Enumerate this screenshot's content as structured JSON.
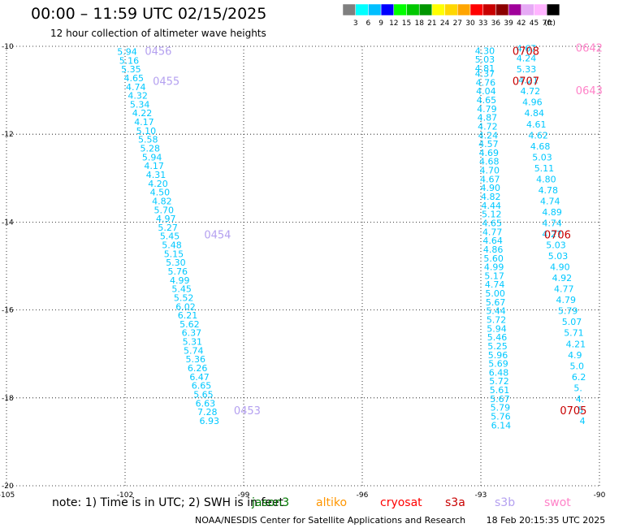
{
  "header": {
    "title": "00:00 – 11:59 UTC 02/15/2025",
    "subtitle": "12 hour collection of altimeter wave heights"
  },
  "colorbar": {
    "unit": "(ft)",
    "levels": [
      {
        "label": "",
        "color": "#7f7f7f"
      },
      {
        "label": "3",
        "color": "#00ffff"
      },
      {
        "label": "6",
        "color": "#00bfff"
      },
      {
        "label": "9",
        "color": "#0000ff"
      },
      {
        "label": "12",
        "color": "#00ff00"
      },
      {
        "label": "15",
        "color": "#00c800"
      },
      {
        "label": "18",
        "color": "#009600"
      },
      {
        "label": "21",
        "color": "#ffff00"
      },
      {
        "label": "24",
        "color": "#ffd700"
      },
      {
        "label": "27",
        "color": "#ffa500"
      },
      {
        "label": "30",
        "color": "#ff0000"
      },
      {
        "label": "33",
        "color": "#c80000"
      },
      {
        "label": "36",
        "color": "#8b0000"
      },
      {
        "label": "39",
        "color": "#a0009a"
      },
      {
        "label": "42",
        "color": "#e6aaf5"
      },
      {
        "label": "45",
        "color": "#ffb4ff"
      },
      {
        "label": "70",
        "color": "#000000"
      }
    ]
  },
  "map": {
    "lon_range": [
      -105,
      -90
    ],
    "lat_range": [
      -20,
      -10
    ],
    "x_ticks": [
      {
        "value": -105,
        "label": "-105"
      },
      {
        "value": -102,
        "label": "-102"
      },
      {
        "value": -99,
        "label": "-99"
      },
      {
        "value": -96,
        "label": "-96"
      },
      {
        "value": -93,
        "label": "-93"
      },
      {
        "value": -90,
        "label": "-90"
      }
    ],
    "y_ticks": [
      {
        "value": -10,
        "label": "-10"
      },
      {
        "value": -12,
        "label": "-12"
      },
      {
        "value": -14,
        "label": "-14"
      },
      {
        "value": -16,
        "label": "-16"
      },
      {
        "value": -18,
        "label": "-18"
      },
      {
        "value": -20,
        "label": "-20"
      }
    ],
    "label_color": "#00c8ff",
    "tracks": [
      {
        "satellite": "s3b",
        "color": "#b4a0f0",
        "points": [
          {
            "lon": -102.2,
            "lat": -10.12,
            "swh": "5.94"
          },
          {
            "lon": -102.15,
            "lat": -10.32,
            "swh": "5.16"
          },
          {
            "lon": -102.1,
            "lat": -10.52,
            "swh": "5.35"
          },
          {
            "lon": -102.03,
            "lat": -10.72,
            "swh": "4.65"
          },
          {
            "lon": -101.98,
            "lat": -10.92,
            "swh": "4.74"
          },
          {
            "lon": -101.93,
            "lat": -11.12,
            "swh": "4.32"
          },
          {
            "lon": -101.88,
            "lat": -11.32,
            "swh": "5.34"
          },
          {
            "lon": -101.82,
            "lat": -11.52,
            "swh": "4.22"
          },
          {
            "lon": -101.77,
            "lat": -11.72,
            "swh": "4.17"
          },
          {
            "lon": -101.72,
            "lat": -11.92,
            "swh": "5.10"
          },
          {
            "lon": -101.67,
            "lat": -12.12,
            "swh": "5.58"
          },
          {
            "lon": -101.62,
            "lat": -12.32,
            "swh": "5.28"
          },
          {
            "lon": -101.57,
            "lat": -12.52,
            "swh": "5.94"
          },
          {
            "lon": -101.52,
            "lat": -12.72,
            "swh": "4.17"
          },
          {
            "lon": -101.47,
            "lat": -12.92,
            "swh": "4.31"
          },
          {
            "lon": -101.42,
            "lat": -13.12,
            "swh": "4.20"
          },
          {
            "lon": -101.37,
            "lat": -13.32,
            "swh": "4.50"
          },
          {
            "lon": -101.32,
            "lat": -13.52,
            "swh": "4.82"
          },
          {
            "lon": -101.27,
            "lat": -13.72,
            "swh": "5.70"
          },
          {
            "lon": -101.22,
            "lat": -13.92,
            "swh": "4.97"
          },
          {
            "lon": -101.17,
            "lat": -14.12,
            "swh": "5.27"
          },
          {
            "lon": -101.12,
            "lat": -14.32,
            "swh": "5.45"
          },
          {
            "lon": -101.07,
            "lat": -14.52,
            "swh": "5.48"
          },
          {
            "lon": -101.02,
            "lat": -14.72,
            "swh": "5.15"
          },
          {
            "lon": -100.97,
            "lat": -14.92,
            "swh": "5.30"
          },
          {
            "lon": -100.92,
            "lat": -15.12,
            "swh": "5.76"
          },
          {
            "lon": -100.87,
            "lat": -15.32,
            "swh": "4.99"
          },
          {
            "lon": -100.82,
            "lat": -15.52,
            "swh": "5.45"
          },
          {
            "lon": -100.77,
            "lat": -15.72,
            "swh": "5.52"
          },
          {
            "lon": -100.72,
            "lat": -15.92,
            "swh": "6.02"
          },
          {
            "lon": -100.67,
            "lat": -16.12,
            "swh": "6.21"
          },
          {
            "lon": -100.62,
            "lat": -16.32,
            "swh": "5.62"
          },
          {
            "lon": -100.57,
            "lat": -16.52,
            "swh": "6.37"
          },
          {
            "lon": -100.55,
            "lat": -16.72,
            "swh": "5.31"
          },
          {
            "lon": -100.52,
            "lat": -16.92,
            "swh": "5.74"
          },
          {
            "lon": -100.47,
            "lat": -17.12,
            "swh": "5.36"
          },
          {
            "lon": -100.42,
            "lat": -17.32,
            "swh": "6.26"
          },
          {
            "lon": -100.37,
            "lat": -17.52,
            "swh": "6.47"
          },
          {
            "lon": -100.32,
            "lat": -17.72,
            "swh": "6.65"
          },
          {
            "lon": -100.27,
            "lat": -17.92,
            "swh": "5.65"
          },
          {
            "lon": -100.22,
            "lat": -18.12,
            "swh": "6.63"
          },
          {
            "lon": -100.17,
            "lat": -18.32,
            "swh": "7.28"
          },
          {
            "lon": -100.12,
            "lat": -18.52,
            "swh": "6.93"
          }
        ]
      },
      {
        "satellite": "s3a",
        "color": "#c80000",
        "points": [
          {
            "lon": -93.15,
            "lat": -10.1,
            "swh": "4.30"
          },
          {
            "lon": -93.15,
            "lat": -10.3,
            "swh": "5.03"
          },
          {
            "lon": -93.15,
            "lat": -10.5,
            "swh": "4.81"
          },
          {
            "lon": -93.15,
            "lat": -10.62,
            "swh": "4.37"
          },
          {
            "lon": -93.13,
            "lat": -10.82,
            "swh": "4.76"
          },
          {
            "lon": -93.12,
            "lat": -11.02,
            "swh": "4.04"
          },
          {
            "lon": -93.11,
            "lat": -11.22,
            "swh": "4.65"
          },
          {
            "lon": -93.1,
            "lat": -11.42,
            "swh": "4.79"
          },
          {
            "lon": -93.09,
            "lat": -11.62,
            "swh": "4.87"
          },
          {
            "lon": -93.08,
            "lat": -11.82,
            "swh": "4.72"
          },
          {
            "lon": -93.07,
            "lat": -12.02,
            "swh": "4.24"
          },
          {
            "lon": -93.06,
            "lat": -12.22,
            "swh": "4.57"
          },
          {
            "lon": -93.05,
            "lat": -12.42,
            "swh": "4.69"
          },
          {
            "lon": -93.04,
            "lat": -12.62,
            "swh": "4.68"
          },
          {
            "lon": -93.03,
            "lat": -12.82,
            "swh": "4.70"
          },
          {
            "lon": -93.02,
            "lat": -13.02,
            "swh": "4.67"
          },
          {
            "lon": -93.01,
            "lat": -13.22,
            "swh": "4.90"
          },
          {
            "lon": -93.0,
            "lat": -13.42,
            "swh": "4.82"
          },
          {
            "lon": -92.99,
            "lat": -13.62,
            "swh": "4.44"
          },
          {
            "lon": -92.98,
            "lat": -13.82,
            "swh": "5.12"
          },
          {
            "lon": -92.97,
            "lat": -14.02,
            "swh": "4.65"
          },
          {
            "lon": -92.96,
            "lat": -14.22,
            "swh": "4.77"
          },
          {
            "lon": -92.95,
            "lat": -14.42,
            "swh": "4.64"
          },
          {
            "lon": -92.94,
            "lat": -14.62,
            "swh": "4.86"
          },
          {
            "lon": -92.93,
            "lat": -14.82,
            "swh": "5.60"
          },
          {
            "lon": -92.92,
            "lat": -15.02,
            "swh": "4.99"
          },
          {
            "lon": -92.91,
            "lat": -15.22,
            "swh": "5.17"
          },
          {
            "lon": -92.9,
            "lat": -15.42,
            "swh": "4.74"
          },
          {
            "lon": -92.89,
            "lat": -15.62,
            "swh": "5.00"
          },
          {
            "lon": -92.88,
            "lat": -15.82,
            "swh": "5.67"
          },
          {
            "lon": -92.87,
            "lat": -16.02,
            "swh": "5.44"
          },
          {
            "lon": -92.86,
            "lat": -16.22,
            "swh": "5.72"
          },
          {
            "lon": -92.85,
            "lat": -16.42,
            "swh": "5.94"
          },
          {
            "lon": -92.84,
            "lat": -16.62,
            "swh": "5.46"
          },
          {
            "lon": -92.83,
            "lat": -16.82,
            "swh": "5.25"
          },
          {
            "lon": -92.82,
            "lat": -17.02,
            "swh": "5.96"
          },
          {
            "lon": -92.81,
            "lat": -17.22,
            "swh": "5.69"
          },
          {
            "lon": -92.8,
            "lat": -17.42,
            "swh": "6.48"
          },
          {
            "lon": -92.79,
            "lat": -17.62,
            "swh": "5.72"
          },
          {
            "lon": -92.78,
            "lat": -17.82,
            "swh": "5.61"
          },
          {
            "lon": -92.77,
            "lat": -18.02,
            "swh": "5.67"
          },
          {
            "lon": -92.76,
            "lat": -18.22,
            "swh": "5.79"
          },
          {
            "lon": -92.75,
            "lat": -18.42,
            "swh": "5.76"
          },
          {
            "lon": -92.74,
            "lat": -18.62,
            "swh": "6.14"
          }
        ]
      },
      {
        "satellite": "swot",
        "color": "#ff82c8",
        "points": [
          {
            "lon": -92.1,
            "lat": -10.05,
            "swh": "4.67"
          },
          {
            "lon": -92.1,
            "lat": -10.27,
            "swh": "4.24"
          },
          {
            "lon": -92.1,
            "lat": -10.52,
            "swh": "5.33"
          },
          {
            "lon": -92.05,
            "lat": -10.77,
            "swh": "4.21"
          },
          {
            "lon": -92.0,
            "lat": -11.02,
            "swh": "4.72"
          },
          {
            "lon": -91.95,
            "lat": -11.27,
            "swh": "4.96"
          },
          {
            "lon": -91.9,
            "lat": -11.52,
            "swh": "4.84"
          },
          {
            "lon": -91.85,
            "lat": -11.77,
            "swh": "4.61"
          },
          {
            "lon": -91.8,
            "lat": -12.02,
            "swh": "4.62"
          },
          {
            "lon": -91.75,
            "lat": -12.27,
            "swh": "4.68"
          },
          {
            "lon": -91.7,
            "lat": -12.52,
            "swh": "5.03"
          },
          {
            "lon": -91.65,
            "lat": -12.77,
            "swh": "5.11"
          },
          {
            "lon": -91.6,
            "lat": -13.02,
            "swh": "4.80"
          },
          {
            "lon": -91.55,
            "lat": -13.27,
            "swh": "4.78"
          },
          {
            "lon": -91.5,
            "lat": -13.52,
            "swh": "4.74"
          },
          {
            "lon": -91.45,
            "lat": -13.77,
            "swh": "4.89"
          },
          {
            "lon": -91.45,
            "lat": -14.02,
            "swh": "4.74"
          },
          {
            "lon": -91.45,
            "lat": -14.27,
            "swh": "4.27"
          },
          {
            "lon": -91.35,
            "lat": -14.52,
            "swh": "5.03"
          },
          {
            "lon": -91.3,
            "lat": -14.77,
            "swh": "5.03"
          },
          {
            "lon": -91.25,
            "lat": -15.02,
            "swh": "4.90"
          },
          {
            "lon": -91.2,
            "lat": -15.27,
            "swh": "4.92"
          },
          {
            "lon": -91.15,
            "lat": -15.52,
            "swh": "4.77"
          },
          {
            "lon": -91.1,
            "lat": -15.77,
            "swh": "4.79"
          },
          {
            "lon": -91.05,
            "lat": -16.02,
            "swh": "5.79"
          },
          {
            "lon": -90.95,
            "lat": -16.27,
            "swh": "5.07"
          },
          {
            "lon": -90.9,
            "lat": -16.52,
            "swh": "5.71"
          },
          {
            "lon": -90.85,
            "lat": -16.77,
            "swh": "4.21"
          },
          {
            "lon": -90.8,
            "lat": -17.02,
            "swh": "4.9"
          },
          {
            "lon": -90.75,
            "lat": -17.27,
            "swh": "5.0"
          },
          {
            "lon": -90.7,
            "lat": -17.52,
            "swh": "6.2"
          },
          {
            "lon": -90.65,
            "lat": -17.77,
            "swh": "5."
          },
          {
            "lon": -90.6,
            "lat": -18.02,
            "swh": "4."
          },
          {
            "lon": -90.55,
            "lat": -18.27,
            "swh": "5"
          },
          {
            "lon": -90.5,
            "lat": -18.52,
            "swh": "4"
          }
        ]
      }
    ],
    "time_labels": [
      {
        "text": "0456",
        "lon": -101.5,
        "lat": -10.12,
        "color": "#b4a0f0"
      },
      {
        "text": "0455",
        "lon": -101.3,
        "lat": -10.8,
        "color": "#b4a0f0"
      },
      {
        "text": "0454",
        "lon": -100.0,
        "lat": -14.3,
        "color": "#b4a0f0"
      },
      {
        "text": "0453",
        "lon": -99.25,
        "lat": -18.3,
        "color": "#b4a0f0"
      },
      {
        "text": "0708",
        "lon": -92.2,
        "lat": -10.12,
        "color": "#c80000"
      },
      {
        "text": "0707",
        "lon": -92.2,
        "lat": -10.8,
        "color": "#c80000"
      },
      {
        "text": "0706",
        "lon": -91.4,
        "lat": -14.3,
        "color": "#c80000"
      },
      {
        "text": "0705",
        "lon": -91.0,
        "lat": -18.3,
        "color": "#c80000"
      },
      {
        "text": "0642",
        "lon": -90.6,
        "lat": -10.05,
        "color": "#ff82c8"
      },
      {
        "text": "0643",
        "lon": -90.6,
        "lat": -11.02,
        "color": "#ff82c8"
      }
    ]
  },
  "note": {
    "text": "note:  1) Time is in UTC;  2) SWH is in feet",
    "satellites": [
      {
        "name": "jason3",
        "color": "#007800"
      },
      {
        "name": "altiko",
        "color": "#ff9600"
      },
      {
        "name": "cryosat",
        "color": "#ff0000"
      },
      {
        "name": "s3a",
        "color": "#c80000"
      },
      {
        "name": "s3b",
        "color": "#b4a0f0"
      },
      {
        "name": "swot",
        "color": "#ff82c8"
      }
    ]
  },
  "footer": {
    "credit": "NOAA/NESDIS Center for Satellite Applications and Research",
    "generated": "18 Feb 20:15:35 UTC 2025"
  }
}
